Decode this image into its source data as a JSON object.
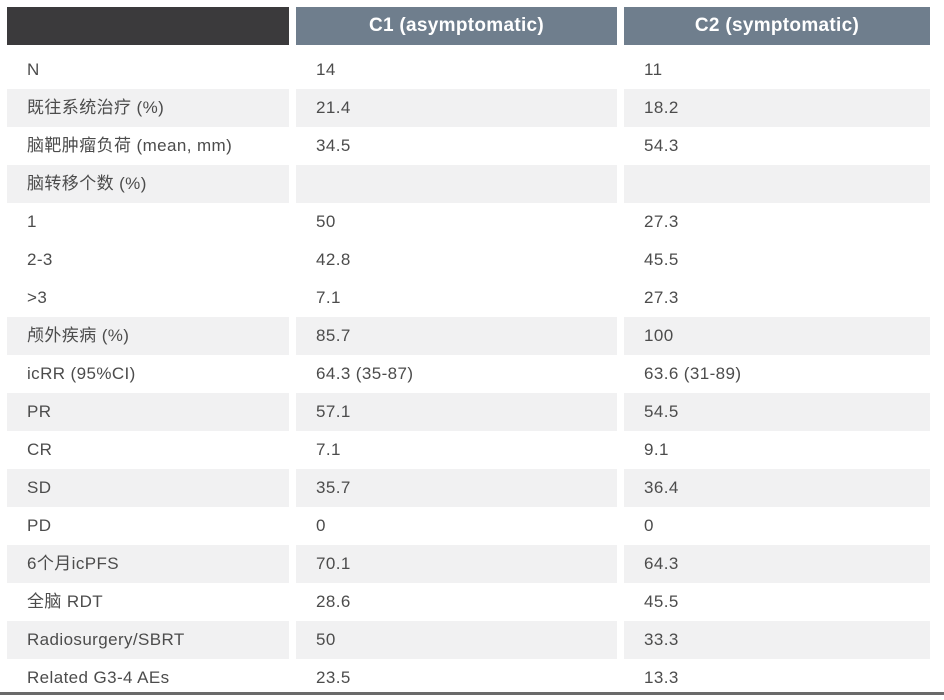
{
  "table": {
    "columns": [
      "C1 (asymptomatic)",
      "C2 (symptomatic)"
    ],
    "rows": [
      {
        "label": "N",
        "c1": "14",
        "c2": "11",
        "shaded": false
      },
      {
        "label": "既往系统治疗 (%)",
        "c1": "21.4",
        "c2": "18.2",
        "shaded": true
      },
      {
        "label": "脑靶肿瘤负荷 (mean, mm)",
        "c1": "34.5",
        "c2": "54.3",
        "shaded": false
      },
      {
        "label": "脑转移个数 (%)",
        "c1": "",
        "c2": "",
        "shaded": true
      },
      {
        "label": "1",
        "c1": "50",
        "c2": "27.3",
        "shaded": false
      },
      {
        "label": "2-3",
        "c1": "42.8",
        "c2": "45.5",
        "shaded": false
      },
      {
        "label": ">3",
        "c1": "7.1",
        "c2": "27.3",
        "shaded": false
      },
      {
        "label": "颅外疾病 (%)",
        "c1": "85.7",
        "c2": "100",
        "shaded": true
      },
      {
        "label": "icRR (95%CI)",
        "c1": "64.3 (35-87)",
        "c2": "63.6 (31-89)",
        "shaded": false
      },
      {
        "label": "PR",
        "c1": "57.1",
        "c2": "54.5",
        "shaded": true
      },
      {
        "label": "CR",
        "c1": "7.1",
        "c2": "9.1",
        "shaded": false
      },
      {
        "label": "SD",
        "c1": "35.7",
        "c2": "36.4",
        "shaded": true
      },
      {
        "label": "PD",
        "c1": "0",
        "c2": "0",
        "shaded": false
      },
      {
        "label": "6个月icPFS",
        "c1": "70.1",
        "c2": "64.3",
        "shaded": true
      },
      {
        "label": "全脑 RDT",
        "c1": "28.6",
        "c2": "45.5",
        "shaded": false
      },
      {
        "label": "Radiosurgery/SBRT",
        "c1": "50",
        "c2": "33.3",
        "shaded": true
      },
      {
        "label": "Related G3-4 AEs",
        "c1": "23.5",
        "c2": "13.3",
        "shaded": false
      }
    ],
    "colors": {
      "corner_bg": "#3b3a3c",
      "header_bg": "#6f7e8d",
      "header_text": "#ffffff",
      "stripe_bg": "#f1f1f2",
      "body_text": "#4c4c4c",
      "bottom_rule": "#6a6a6a"
    }
  }
}
